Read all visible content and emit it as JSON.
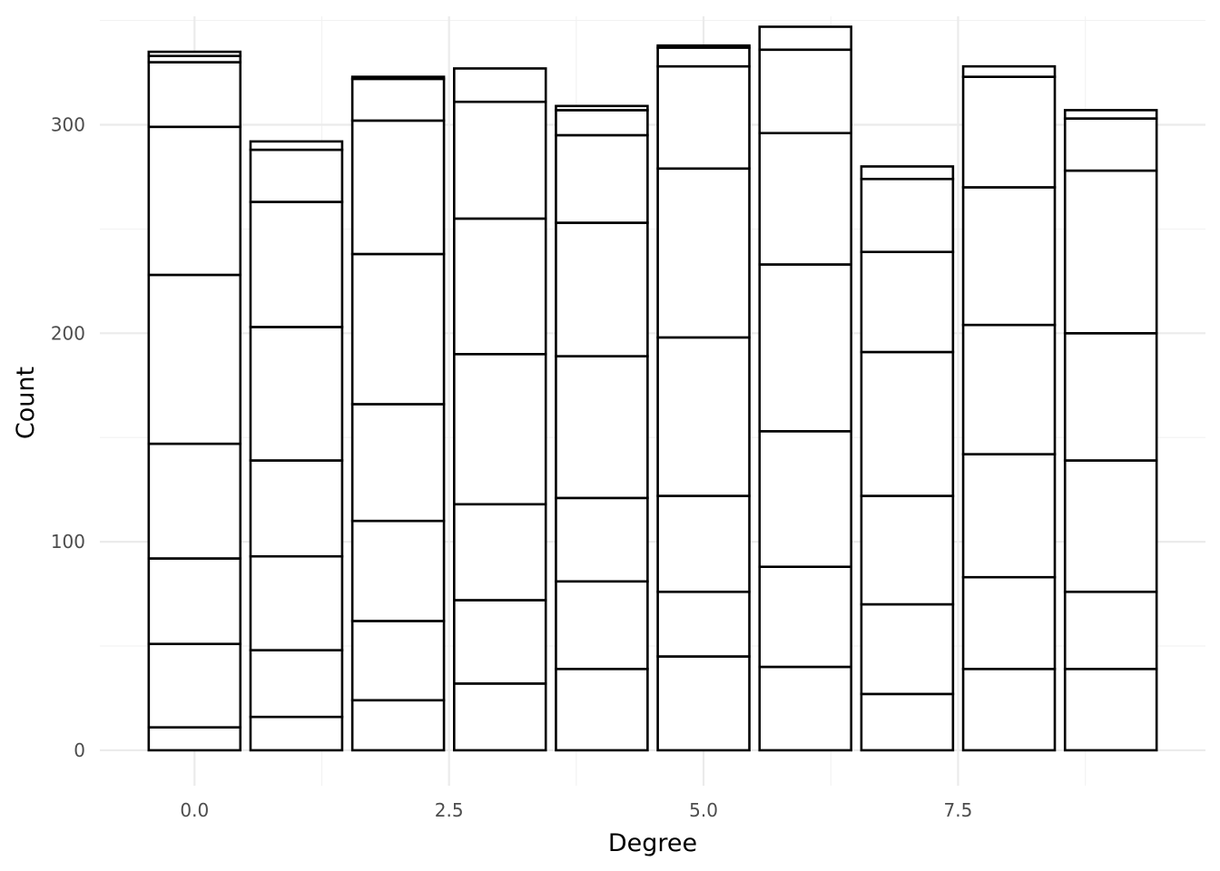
{
  "chart_data": {
    "type": "bar",
    "stacked": true,
    "xlabel": "Degree",
    "ylabel": "Count",
    "x": [
      0,
      1,
      2,
      3,
      4,
      5,
      6,
      7,
      8,
      9
    ],
    "xlim": [
      -0.93,
      9.93
    ],
    "ylim": [
      -17,
      352
    ],
    "x_ticks": [
      0.0,
      2.5,
      5.0,
      7.5
    ],
    "x_tick_labels": [
      "0.0",
      "2.5",
      "5.0",
      "7.5"
    ],
    "y_ticks": [
      0,
      100,
      200,
      300
    ],
    "y_tick_labels": [
      "0",
      "100",
      "200",
      "300"
    ],
    "grid": true,
    "fill_color": "#ffffff",
    "edge_color": "#000000",
    "segment_boundaries": [
      [
        11,
        51,
        92,
        147,
        228,
        299,
        330,
        333,
        335
      ],
      [
        16,
        48,
        93,
        139,
        203,
        263,
        288,
        292
      ],
      [
        24,
        62,
        110,
        166,
        238,
        302,
        322,
        323
      ],
      [
        32,
        72,
        118,
        190,
        255,
        311,
        327
      ],
      [
        39,
        81,
        121,
        189,
        253,
        295,
        307,
        309
      ],
      [
        45,
        76,
        122,
        198,
        279,
        328,
        337,
        338
      ],
      [
        40,
        88,
        153,
        233,
        296,
        336,
        347
      ],
      [
        27,
        70,
        122,
        191,
        239,
        274,
        280
      ],
      [
        39,
        83,
        142,
        204,
        270,
        323,
        328
      ],
      [
        39,
        76,
        139,
        200,
        278,
        303,
        307
      ]
    ],
    "totals": [
      335,
      292,
      323,
      327,
      309,
      338,
      347,
      280,
      328,
      307
    ]
  }
}
